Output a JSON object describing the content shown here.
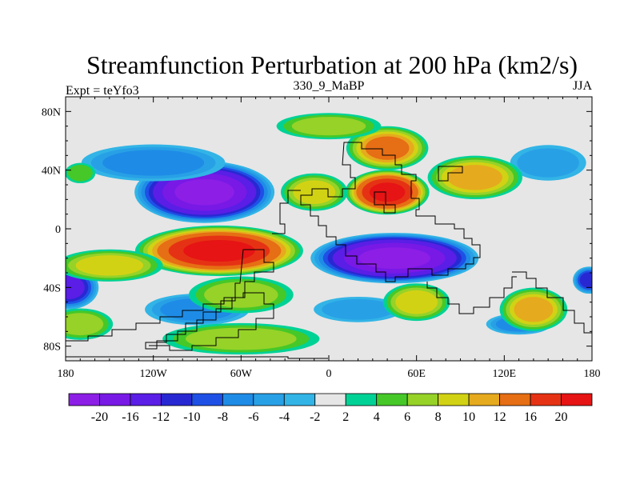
{
  "chart_data": {
    "type": "filled-contour-map",
    "title": "Streamfunction Perturbation at 200 hPa (km2/s)",
    "left_string": "Expt = teYfo3",
    "center_string": "330_9_MaBP",
    "right_string": "JJA",
    "x_axis": {
      "range": [
        -180,
        180
      ],
      "ticks": [
        -180,
        -120,
        -60,
        0,
        60,
        120,
        180
      ],
      "tick_labels": [
        "180",
        "120W",
        "60W",
        "0",
        "60E",
        "120E",
        "180"
      ]
    },
    "y_axis": {
      "range": [
        -90,
        90
      ],
      "ticks": [
        80,
        40,
        0,
        -40,
        -80
      ],
      "tick_labels": [
        "80N",
        "40N",
        "0",
        "40S",
        "80S"
      ]
    },
    "colorbar": {
      "labels": [
        "-20",
        "-16",
        "-12",
        "-10",
        "-8",
        "-6",
        "-4",
        "-2",
        "2",
        "4",
        "6",
        "8",
        "10",
        "12",
        "16",
        "20"
      ],
      "colors": [
        "#8c1ee6",
        "#7819e6",
        "#5a1ee6",
        "#2828d2",
        "#1e50e6",
        "#1e8ce6",
        "#28a0e6",
        "#32b4e6",
        "#e6e6e6",
        "#00d296",
        "#46c828",
        "#96d228",
        "#d2d214",
        "#e6aa1e",
        "#e66e14",
        "#e63214",
        "#e61414"
      ]
    },
    "features": [
      {
        "sign": "neg",
        "lon": -85,
        "lat": 25,
        "rx": 50,
        "ry": 22,
        "peak": -20
      },
      {
        "sign": "neg",
        "lon": 45,
        "lat": -20,
        "rx": 60,
        "ry": 18,
        "peak": -20
      },
      {
        "sign": "neg",
        "lon": -178,
        "lat": -40,
        "rx": 22,
        "ry": 16,
        "peak": -12
      },
      {
        "sign": "neg",
        "lon": 178,
        "lat": -35,
        "rx": 12,
        "ry": 10,
        "peak": -10
      },
      {
        "sign": "neg",
        "lon": -120,
        "lat": 45,
        "rx": 55,
        "ry": 14,
        "peak": -6
      },
      {
        "sign": "neg",
        "lon": 150,
        "lat": 45,
        "rx": 30,
        "ry": 14,
        "peak": -4
      },
      {
        "sign": "neg",
        "lon": -90,
        "lat": -55,
        "rx": 40,
        "ry": 12,
        "peak": -6
      },
      {
        "sign": "neg",
        "lon": 20,
        "lat": -55,
        "rx": 35,
        "ry": 10,
        "peak": -4
      },
      {
        "sign": "neg",
        "lon": 130,
        "lat": -65,
        "rx": 25,
        "ry": 8,
        "peak": -6
      },
      {
        "sign": "pos",
        "lon": -75,
        "lat": -15,
        "rx": 60,
        "ry": 18,
        "peak": 20
      },
      {
        "sign": "pos",
        "lon": 40,
        "lat": 25,
        "rx": 30,
        "ry": 16,
        "peak": 20
      },
      {
        "sign": "pos",
        "lon": 40,
        "lat": 55,
        "rx": 30,
        "ry": 16,
        "peak": 12
      },
      {
        "sign": "pos",
        "lon": 100,
        "lat": 35,
        "rx": 35,
        "ry": 16,
        "peak": 10
      },
      {
        "sign": "pos",
        "lon": -10,
        "lat": 25,
        "rx": 25,
        "ry": 14,
        "peak": 8
      },
      {
        "sign": "pos",
        "lon": 140,
        "lat": -55,
        "rx": 25,
        "ry": 16,
        "peak": 10
      },
      {
        "sign": "pos",
        "lon": 60,
        "lat": -50,
        "rx": 25,
        "ry": 14,
        "peak": 8
      },
      {
        "sign": "pos",
        "lon": -60,
        "lat": -45,
        "rx": 40,
        "ry": 14,
        "peak": 6
      },
      {
        "sign": "pos",
        "lon": -150,
        "lat": -25,
        "rx": 40,
        "ry": 12,
        "peak": 8
      },
      {
        "sign": "pos",
        "lon": -170,
        "lat": -65,
        "rx": 25,
        "ry": 12,
        "peak": 6
      },
      {
        "sign": "pos",
        "lon": -60,
        "lat": -75,
        "rx": 60,
        "ry": 12,
        "peak": 6
      },
      {
        "sign": "pos",
        "lon": 0,
        "lat": 70,
        "rx": 40,
        "ry": 10,
        "peak": 6
      },
      {
        "sign": "pos",
        "lon": -170,
        "lat": 38,
        "rx": 12,
        "ry": 8,
        "peak": 4
      }
    ]
  }
}
